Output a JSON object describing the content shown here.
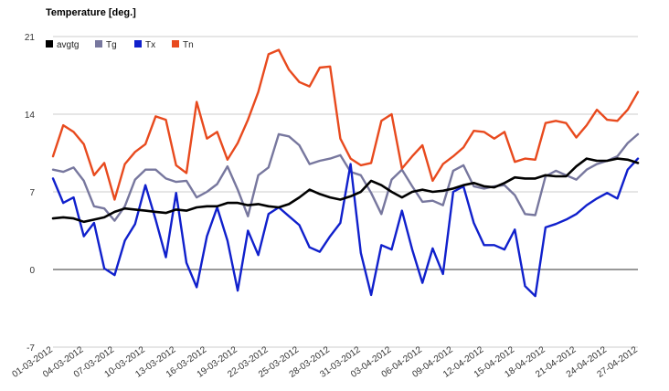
{
  "chart_data": {
    "type": "line",
    "title": "Temperature [deg.]",
    "xlabel": "",
    "ylabel": "",
    "ylim": [
      -7,
      21
    ],
    "yticks": [
      -7,
      0,
      7,
      14,
      21
    ],
    "grid": true,
    "legend_position": "top-left",
    "x": [
      "01-03-2012",
      "02-03-2012",
      "03-03-2012",
      "04-03-2012",
      "05-03-2012",
      "06-03-2012",
      "07-03-2012",
      "08-03-2012",
      "09-03-2012",
      "10-03-2012",
      "11-03-2012",
      "12-03-2012",
      "13-03-2012",
      "14-03-2012",
      "15-03-2012",
      "16-03-2012",
      "17-03-2012",
      "18-03-2012",
      "19-03-2012",
      "20-03-2012",
      "21-03-2012",
      "22-03-2012",
      "23-03-2012",
      "24-03-2012",
      "25-03-2012",
      "26-03-2012",
      "27-03-2012",
      "28-03-2012",
      "29-03-2012",
      "30-03-2012",
      "31-03-2012",
      "01-04-2012",
      "02-04-2012",
      "03-04-2012",
      "04-04-2012",
      "05-04-2012",
      "06-04-2012",
      "07-04-2012",
      "08-04-2012",
      "09-04-2012",
      "10-04-2012",
      "11-04-2012",
      "12-04-2012",
      "13-04-2012",
      "14-04-2012",
      "15-04-2012",
      "16-04-2012",
      "17-04-2012",
      "18-04-2012",
      "19-04-2012",
      "20-04-2012",
      "21-04-2012",
      "22-04-2012",
      "23-04-2012",
      "24-04-2012",
      "25-04-2012",
      "26-04-2012",
      "27-04-2012"
    ],
    "xtick_labels": [
      "01-03-2012",
      "04-03-2012",
      "07-03-2012",
      "10-03-2012",
      "13-03-2012",
      "16-03-2012",
      "19-03-2012",
      "22-03-2012",
      "25-03-2012",
      "28-03-2012",
      "31-03-2012",
      "03-04-2012",
      "06-04-2012",
      "09-04-2012",
      "12-04-2012",
      "15-04-2012",
      "18-04-2012",
      "21-04-2012",
      "24-04-2012",
      "27-04-2012"
    ],
    "series": [
      {
        "name": "avgtg",
        "color": "#000000",
        "values": [
          4.6,
          4.7,
          4.6,
          4.3,
          4.5,
          4.7,
          5.2,
          5.5,
          5.4,
          5.3,
          5.2,
          5.1,
          5.4,
          5.3,
          5.6,
          5.7,
          5.7,
          6.0,
          6.0,
          5.8,
          5.9,
          5.7,
          5.6,
          5.9,
          6.5,
          7.2,
          6.8,
          6.5,
          6.3,
          6.6,
          7.0,
          8.0,
          7.6,
          7.0,
          6.5,
          7.0,
          7.2,
          7.0,
          7.1,
          7.3,
          7.6,
          7.8,
          7.5,
          7.4,
          7.8,
          8.3,
          8.2,
          8.2,
          8.5,
          8.4,
          8.4,
          9.3,
          10.0,
          9.8,
          9.8,
          10.0,
          9.9,
          9.6
        ]
      },
      {
        "name": "Tg",
        "color": "#77779e",
        "values": [
          9.0,
          8.8,
          9.2,
          8.0,
          5.7,
          5.5,
          4.4,
          5.7,
          8.1,
          9.0,
          9.0,
          8.2,
          7.9,
          8.0,
          6.5,
          7.0,
          7.7,
          9.3,
          7.2,
          4.8,
          8.5,
          9.2,
          12.2,
          12.0,
          11.2,
          9.5,
          9.8,
          10.0,
          10.3,
          8.8,
          8.5,
          6.9,
          5.0,
          8.1,
          9.0,
          7.5,
          6.1,
          6.2,
          5.8,
          8.9,
          9.4,
          7.5,
          7.3,
          7.5,
          7.6,
          6.7,
          5.0,
          4.9,
          8.4,
          8.9,
          8.5,
          8.1,
          9.0,
          9.5,
          9.8,
          10.2,
          11.4,
          12.2
        ]
      },
      {
        "name": "Tx",
        "color": "#1020cc",
        "values": [
          8.2,
          6.0,
          6.5,
          3.0,
          4.2,
          0.1,
          -0.5,
          2.6,
          4.1,
          7.6,
          4.5,
          1.1,
          6.9,
          0.6,
          -1.6,
          3.0,
          5.6,
          2.6,
          -1.9,
          3.5,
          1.3,
          5.0,
          5.6,
          4.8,
          4.0,
          2.0,
          1.6,
          3.0,
          4.2,
          9.5,
          1.5,
          -2.3,
          2.2,
          1.8,
          5.3,
          1.8,
          -1.2,
          1.9,
          -0.4,
          7.0,
          7.5,
          4.2,
          2.2,
          2.2,
          1.8,
          3.6,
          -1.5,
          -2.4,
          3.8,
          4.1,
          4.5,
          5.0,
          5.8,
          6.4,
          6.9,
          6.4,
          9.0,
          10.0
        ]
      },
      {
        "name": "Tn",
        "color": "#e84a1e",
        "values": [
          10.2,
          13.0,
          12.4,
          11.3,
          8.5,
          9.6,
          6.3,
          9.5,
          10.6,
          11.3,
          13.8,
          13.5,
          9.4,
          8.7,
          15.1,
          11.8,
          12.4,
          9.9,
          11.4,
          13.5,
          16.0,
          19.4,
          19.8,
          18.0,
          16.9,
          16.5,
          18.2,
          18.3,
          11.8,
          10.0,
          9.4,
          9.6,
          13.4,
          14.0,
          9.1,
          10.2,
          11.2,
          8.0,
          9.5,
          10.2,
          11.0,
          12.5,
          12.4,
          11.8,
          12.4,
          9.7,
          10.0,
          9.9,
          13.2,
          13.4,
          13.2,
          11.9,
          13.0,
          14.4,
          13.5,
          13.4,
          14.4,
          16.0
        ]
      }
    ]
  }
}
